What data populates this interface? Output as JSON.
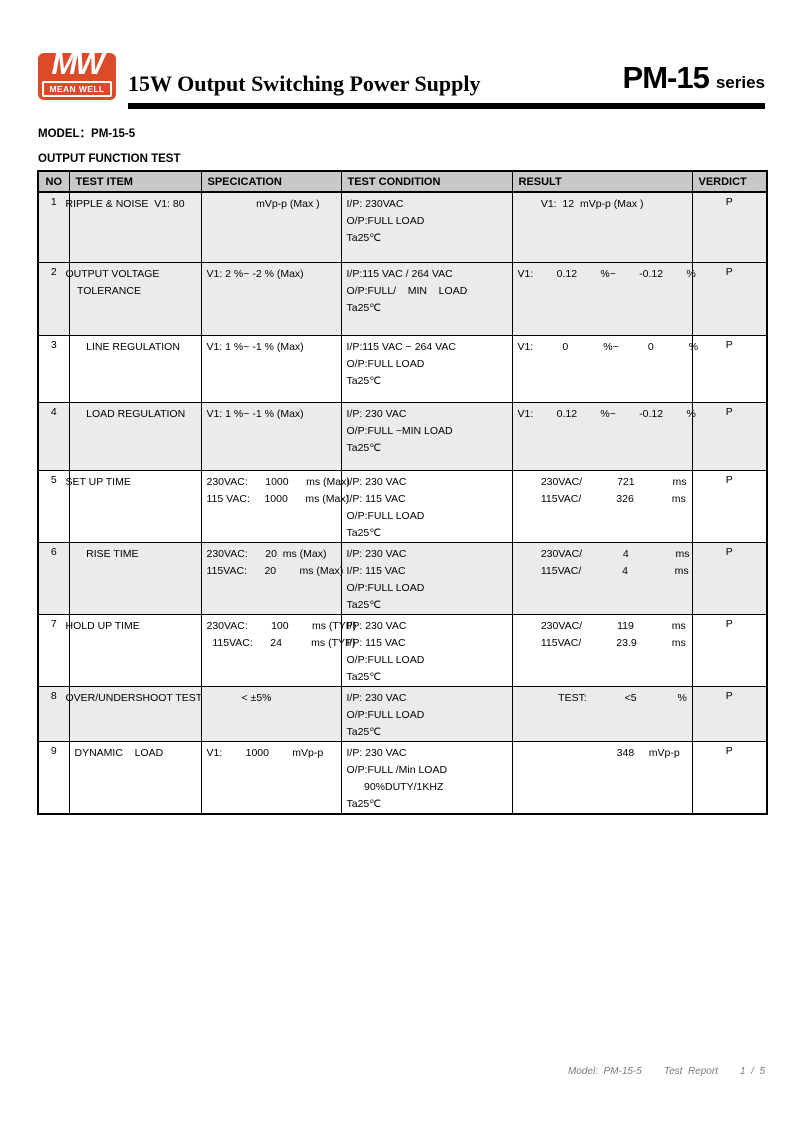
{
  "colors": {
    "logo_red": "#DD4A28",
    "table_header_bg": "#C8C8C8",
    "row_shade_bg": "#EBEBEB",
    "footer_gray": "#7A7A7A"
  },
  "header": {
    "logo_mw": "MW",
    "logo_name": "MEAN WELL",
    "title": "15W Output Switching Power Supply",
    "series_name": "PM-15",
    "series_suffix": "series"
  },
  "model": {
    "label": "MODEL",
    "colon": "：",
    "value": "PM-15-5"
  },
  "section_title": "OUTPUT FUNCTION TEST",
  "table": {
    "columns": [
      "NO",
      "TEST ITEM",
      "SPECICATION",
      "TEST CONDITION",
      "RESULT",
      "VERDICT"
    ],
    "rows": [
      {
        "no": "1",
        "item_lines": [
          "RIPPLE & NOISE  V1: 80"
        ],
        "spec_lines": [
          "                 mVp-p (Max )"
        ],
        "cond_lines": [
          "I/P: 230VAC",
          "O/P:FULL LOAD",
          "Ta25℃"
        ],
        "result_lines": [
          "        V1:  12  mVp-p (Max )"
        ],
        "verdict": "P"
      },
      {
        "no": "2",
        "item_lines": [
          "OUTPUT VOLTAGE",
          "    TOLERANCE"
        ],
        "spec_lines": [
          "V1: 2 %~ -2 % (Max)"
        ],
        "cond_lines": [
          "I/P:115 VAC / 264 VAC",
          "O/P:FULL/    MIN    LOAD",
          "Ta25℃"
        ],
        "result_lines": [
          "V1:        0.12        %~        -0.12        %"
        ],
        "verdict": "P"
      },
      {
        "no": "3",
        "item_lines": [
          "    LINE REGULATION"
        ],
        "spec_lines": [
          "V1: 1 %~ -1 % (Max)"
        ],
        "cond_lines": [
          "I/P:115 VAC ~ 264 VAC",
          "O/P:FULL LOAD",
          "Ta25℃"
        ],
        "result_lines": [
          "V1:          0            %~          0            %"
        ],
        "verdict": "P"
      },
      {
        "no": "4",
        "item_lines": [
          "    LOAD REGULATION"
        ],
        "spec_lines": [
          "V1: 1 %~ -1 % (Max)"
        ],
        "cond_lines": [
          "I/P: 230 VAC",
          "O/P:FULL ~MIN LOAD",
          "Ta25℃"
        ],
        "result_lines": [
          "V1:        0.12        %~        -0.12        %"
        ],
        "verdict": "P"
      },
      {
        "no": "5",
        "item_lines": [
          "SET UP TIME"
        ],
        "spec_lines": [
          "230VAC:      1000      ms (Max)",
          "115 VAC:     1000      ms (Max)"
        ],
        "cond_lines": [
          "I/P: 230 VAC",
          "I/P: 115 VAC",
          "O/P:FULL LOAD",
          "Ta25℃"
        ],
        "result_lines": [
          "        230VAC/            721             ms",
          "        115VAC/            326             ms"
        ],
        "verdict": "P"
      },
      {
        "no": "6",
        "item_lines": [
          "    RISE TIME"
        ],
        "spec_lines": [
          "230VAC:      20  ms (Max)",
          "115VAC:      20        ms (Max)"
        ],
        "cond_lines": [
          "I/P: 230 VAC",
          "I/P: 115 VAC",
          "O/P:FULL LOAD",
          "Ta25℃"
        ],
        "result_lines": [
          "        230VAC/              4                ms",
          "        115VAC/              4                ms"
        ],
        "verdict": "P"
      },
      {
        "no": "7",
        "item_lines": [
          "HOLD UP TIME"
        ],
        "spec_lines": [
          "230VAC:        100        ms (TYP)",
          "  115VAC:      24          ms (TYP)"
        ],
        "cond_lines": [
          "I/P: 230 VAC",
          "I/P: 115 VAC",
          "O/P:FULL LOAD",
          "Ta25℃"
        ],
        "result_lines": [
          "        230VAC/            119             ms",
          "        115VAC/            23.9            ms"
        ],
        "verdict": "P"
      },
      {
        "no": "8",
        "item_lines": [
          "OVER/UNDERSHOOT TEST"
        ],
        "spec_lines": [
          "            < ±5%"
        ],
        "cond_lines": [
          "I/P: 230 VAC",
          "O/P:FULL LOAD",
          "Ta25℃"
        ],
        "result_lines": [
          "              TEST:             <5              %"
        ],
        "verdict": "P"
      },
      {
        "no": "9",
        "item_lines": [
          "DYNAMIC    LOAD"
        ],
        "spec_lines": [
          "V1:        1000        mVp-p"
        ],
        "cond_lines": [
          "I/P: 230 VAC",
          "O/P:FULL /Min LOAD",
          "      90%DUTY/1KHZ",
          "Ta25℃"
        ],
        "result_lines": [
          "                                  348     mVp-p"
        ],
        "verdict": "P"
      }
    ]
  },
  "footer": {
    "model": "Model:  PM-15-5",
    "report": "Test  Report",
    "page": "1  /  5"
  }
}
